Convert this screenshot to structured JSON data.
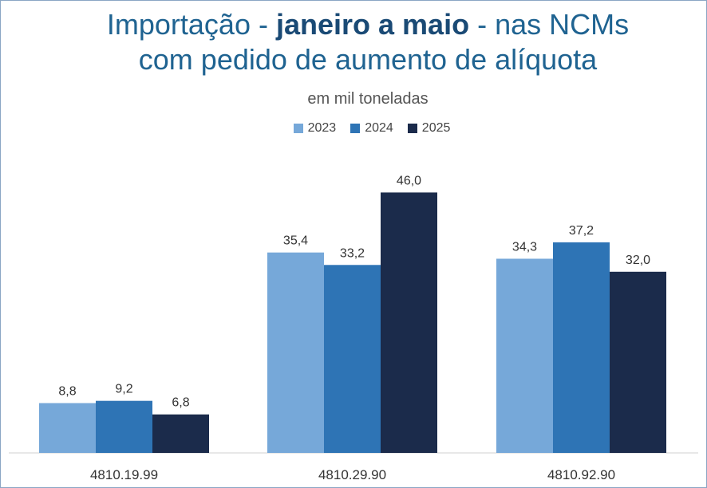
{
  "chart_data": {
    "type": "bar",
    "title_parts": [
      "Importação - ",
      "janeiro a maio",
      " - nas NCMs",
      "com pedido de aumento de alíquota"
    ],
    "subtitle": "em mil toneladas",
    "categories": [
      "4810.19.99",
      "4810.29.90",
      "4810.92.90"
    ],
    "series": [
      {
        "name": "2023",
        "values": [
          8.8,
          35.4,
          34.3
        ],
        "labels": [
          "8,8",
          "35,4",
          "34,3"
        ],
        "color": "#76a8d9"
      },
      {
        "name": "2024",
        "values": [
          9.2,
          33.2,
          37.2
        ],
        "labels": [
          "9,2",
          "33,2",
          "37,2"
        ],
        "color": "#2e74b5"
      },
      {
        "name": "2025",
        "values": [
          6.8,
          46.0,
          32.0
        ],
        "labels": [
          "6,8",
          "46,0",
          "32,0"
        ],
        "color": "#1b2b4b"
      }
    ],
    "ylim": [
      0,
      50
    ],
    "grid": false,
    "legend_position": "top-center"
  }
}
